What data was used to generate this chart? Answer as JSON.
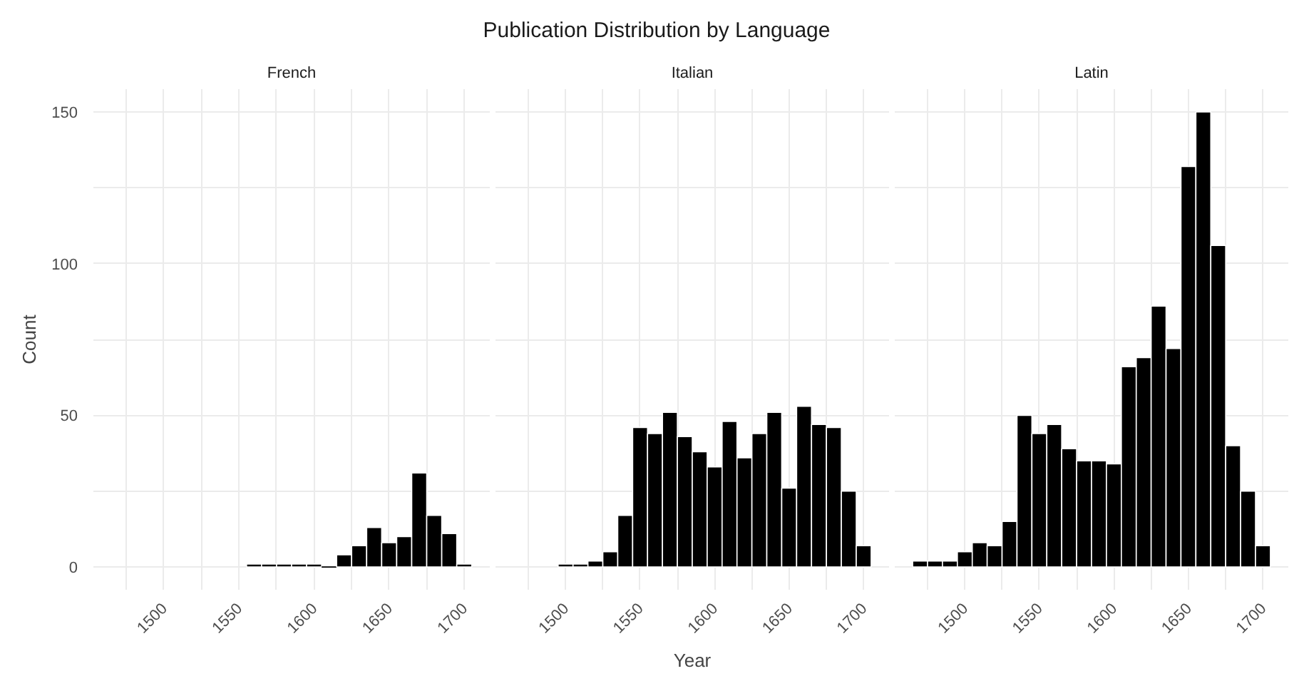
{
  "chart_data": [
    {
      "type": "histogram",
      "subtitle": "French",
      "ylabel": "Count",
      "color": "#000000",
      "bins": [
        1555,
        1565,
        1575,
        1585,
        1595,
        1605,
        1615,
        1625,
        1635,
        1645,
        1655,
        1665,
        1675,
        1685,
        1695,
        1705
      ],
      "values": [
        1,
        1,
        1,
        1,
        1,
        0,
        4,
        7,
        13,
        8,
        10,
        31,
        17,
        11,
        1
      ],
      "xlim": [
        1453,
        1717
      ],
      "ylim": [
        -7.5,
        157.5
      ],
      "xticks": [
        {
          "value": 1475,
          "label": null
        },
        1500,
        {
          "value": 1525,
          "label": null
        },
        1550,
        {
          "value": 1575,
          "label": null
        },
        1600,
        {
          "value": 1625,
          "label": null
        },
        1650,
        {
          "value": 1675,
          "label": null
        },
        1700
      ],
      "yticks": [
        0,
        {
          "value": 25,
          "label": null
        },
        50,
        {
          "value": 75,
          "label": null
        },
        100,
        {
          "value": 125,
          "label": null
        },
        150
      ],
      "grid": true
    },
    {
      "type": "histogram",
      "title": "Publication Distribution by Language",
      "subtitle": "Italian",
      "xlabel": "Year",
      "color": "#000000",
      "bins": [
        1495,
        1505,
        1515,
        1525,
        1535,
        1545,
        1555,
        1565,
        1575,
        1585,
        1595,
        1605,
        1615,
        1625,
        1635,
        1645,
        1655,
        1665,
        1675,
        1685,
        1695,
        1705
      ],
      "values": [
        1,
        1,
        2,
        5,
        17,
        46,
        44,
        51,
        43,
        38,
        33,
        48,
        36,
        44,
        51,
        26,
        53,
        47,
        46,
        25,
        7
      ],
      "xlim": [
        1453,
        1717
      ],
      "ylim": [
        -7.5,
        157.5
      ],
      "xticks": [
        {
          "value": 1475,
          "label": null
        },
        1500,
        {
          "value": 1525,
          "label": null
        },
        1550,
        {
          "value": 1575,
          "label": null
        },
        1600,
        {
          "value": 1625,
          "label": null
        },
        1650,
        {
          "value": 1675,
          "label": null
        },
        1700
      ],
      "yticks": [
        0,
        {
          "value": 25,
          "label": null
        },
        50,
        {
          "value": 75,
          "label": null
        },
        100,
        {
          "value": 125,
          "label": null
        },
        150
      ],
      "grid": true,
      "tick_labels": "x"
    },
    {
      "type": "histogram",
      "subtitle": "Latin",
      "color": "#000000",
      "bins": [
        1465,
        1475,
        1485,
        1495,
        1505,
        1515,
        1525,
        1535,
        1545,
        1555,
        1565,
        1575,
        1585,
        1595,
        1605,
        1615,
        1625,
        1635,
        1645,
        1655,
        1665,
        1675,
        1685,
        1695,
        1705
      ],
      "values": [
        2,
        2,
        2,
        5,
        8,
        7,
        15,
        50,
        44,
        47,
        39,
        35,
        35,
        34,
        66,
        69,
        86,
        72,
        132,
        150,
        106,
        40,
        25,
        7
      ],
      "xlim": [
        1453,
        1717
      ],
      "ylim": [
        -7.5,
        157.5
      ],
      "xticks": [
        {
          "value": 1475,
          "label": null
        },
        1500,
        {
          "value": 1525,
          "label": null
        },
        1550,
        {
          "value": 1575,
          "label": null
        },
        1600,
        {
          "value": 1625,
          "label": null
        },
        1650,
        {
          "value": 1675,
          "label": null
        },
        1700
      ],
      "yticks": [
        0,
        {
          "value": 25,
          "label": null
        },
        50,
        {
          "value": 75,
          "label": null
        },
        100,
        {
          "value": 125,
          "label": null
        },
        150
      ],
      "grid": true,
      "tick_labels": "x"
    }
  ]
}
